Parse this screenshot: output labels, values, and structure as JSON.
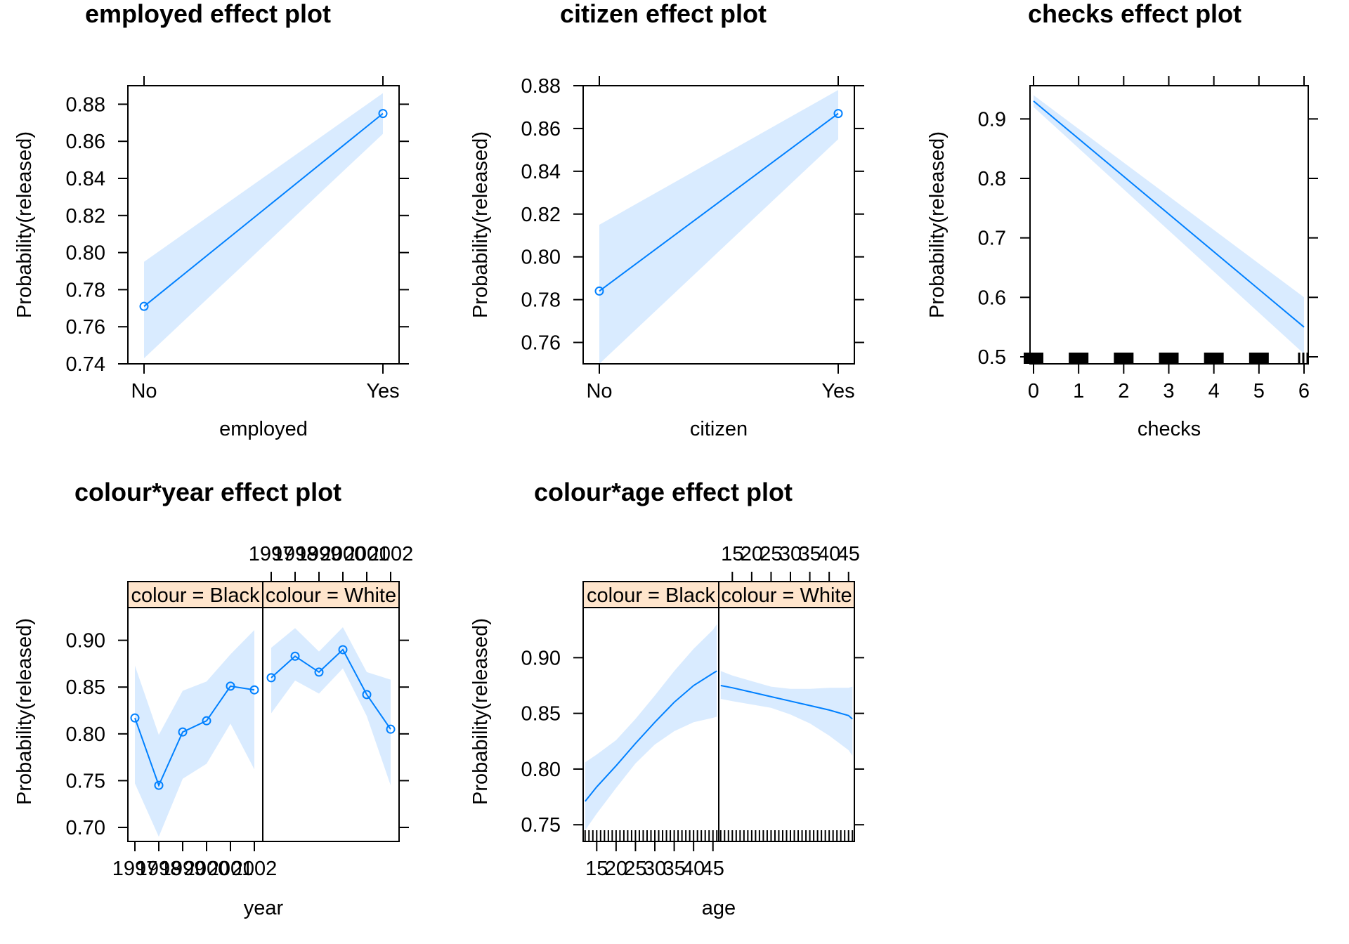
{
  "chart_data": [
    {
      "type": "line",
      "title": "employed effect plot",
      "xlabel": "employed",
      "ylabel": "Probability(released)",
      "categories": [
        "No",
        "Yes"
      ],
      "fit": [
        0.771,
        0.875
      ],
      "lower": [
        0.743,
        0.864
      ],
      "upper": [
        0.795,
        0.886
      ],
      "ylim": [
        0.74,
        0.89
      ],
      "yticks": [
        0.74,
        0.76,
        0.78,
        0.8,
        0.82,
        0.84,
        0.86,
        0.88
      ],
      "ytick_labels": [
        "0.74",
        "0.76",
        "0.78",
        "0.80",
        "0.82",
        "0.84",
        "0.86",
        "0.88"
      ],
      "series_color": "#0080ff",
      "band_color": "#d9ebff"
    },
    {
      "type": "line",
      "title": "citizen effect plot",
      "xlabel": "citizen",
      "ylabel": "Probability(released)",
      "categories": [
        "No",
        "Yes"
      ],
      "fit": [
        0.784,
        0.867
      ],
      "lower": [
        0.75,
        0.855
      ],
      "upper": [
        0.815,
        0.878
      ],
      "ylim": [
        0.75,
        0.88
      ],
      "yticks": [
        0.76,
        0.78,
        0.8,
        0.82,
        0.84,
        0.86,
        0.88
      ],
      "ytick_labels": [
        "0.76",
        "0.78",
        "0.80",
        "0.82",
        "0.84",
        "0.86",
        "0.88"
      ],
      "series_color": "#0080ff",
      "band_color": "#d9ebff"
    },
    {
      "type": "line",
      "title": "checks effect plot",
      "xlabel": "checks",
      "ylabel": "Probability(released)",
      "x": [
        0,
        6
      ],
      "fit": [
        0.93,
        0.55
      ],
      "lower": [
        0.92,
        0.505
      ],
      "upper": [
        0.94,
        0.6
      ],
      "xlim": [
        0,
        6
      ],
      "xticks": [
        0,
        1,
        2,
        3,
        4,
        5,
        6
      ],
      "ylim": [
        0.5,
        0.95
      ],
      "yticks": [
        0.5,
        0.6,
        0.7,
        0.8,
        0.9
      ],
      "ytick_labels": [
        "0.5",
        "0.6",
        "0.7",
        "0.8",
        "0.9"
      ],
      "rug": [
        0,
        1,
        2,
        3,
        4,
        5,
        6
      ],
      "series_color": "#0080ff",
      "band_color": "#d9ebff"
    },
    {
      "type": "line",
      "title": "colour*year effect plot",
      "xlabel": "year",
      "ylabel": "Probability(released)",
      "x": [
        1997,
        1998,
        1999,
        2000,
        2001,
        2002
      ],
      "xticks_labels": [
        "1997",
        "1998",
        "1999",
        "2000",
        "2001",
        "2002"
      ],
      "ylim": [
        0.685,
        0.935
      ],
      "yticks": [
        0.7,
        0.75,
        0.8,
        0.85,
        0.9
      ],
      "ytick_labels": [
        "0.70",
        "0.75",
        "0.80",
        "0.85",
        "0.90"
      ],
      "panels": [
        {
          "strip": "colour = Black",
          "fit": [
            0.817,
            0.745,
            0.802,
            0.814,
            0.851,
            0.847
          ],
          "lower": [
            0.747,
            0.69,
            0.752,
            0.768,
            0.811,
            0.762
          ],
          "upper": [
            0.873,
            0.799,
            0.846,
            0.856,
            0.885,
            0.911
          ]
        },
        {
          "strip": "colour = White",
          "fit": [
            0.86,
            0.883,
            0.866,
            0.89,
            0.842,
            0.805
          ],
          "lower": [
            0.822,
            0.857,
            0.843,
            0.87,
            0.819,
            0.745
          ],
          "upper": [
            0.892,
            0.913,
            0.888,
            0.914,
            0.866,
            0.858
          ]
        }
      ],
      "series_color": "#0080ff",
      "band_color": "#d9ebff",
      "strip_color": "#ffe5cc"
    },
    {
      "type": "line",
      "title": "colour*age effect plot",
      "xlabel": "age",
      "ylabel": "Probability(released)",
      "x": [
        12,
        15,
        20,
        25,
        30,
        35,
        40,
        45,
        46
      ],
      "xticks": [
        15,
        20,
        25,
        30,
        35,
        40,
        45
      ],
      "xticks_labels": [
        "15",
        "20",
        "25",
        "30",
        "35",
        "40",
        "45"
      ],
      "xlim": [
        11.5,
        46.5
      ],
      "ylim": [
        0.735,
        0.945
      ],
      "yticks": [
        0.75,
        0.8,
        0.85,
        0.9
      ],
      "ytick_labels": [
        "0.75",
        "0.80",
        "0.85",
        "0.90"
      ],
      "panels": [
        {
          "strip": "colour = Black",
          "fit": [
            0.771,
            0.784,
            0.803,
            0.823,
            0.842,
            0.86,
            0.875,
            0.886,
            0.888
          ],
          "lower": [
            0.745,
            0.76,
            0.783,
            0.805,
            0.822,
            0.834,
            0.842,
            0.846,
            0.847
          ],
          "upper": [
            0.806,
            0.813,
            0.826,
            0.845,
            0.866,
            0.888,
            0.908,
            0.925,
            0.93
          ]
        },
        {
          "strip": "colour = White",
          "fit": [
            0.875,
            0.873,
            0.869,
            0.865,
            0.861,
            0.857,
            0.853,
            0.848,
            0.845
          ],
          "lower": [
            0.863,
            0.861,
            0.858,
            0.855,
            0.849,
            0.841,
            0.83,
            0.817,
            0.812
          ],
          "upper": [
            0.888,
            0.884,
            0.879,
            0.874,
            0.872,
            0.872,
            0.873,
            0.873,
            0.874
          ]
        }
      ],
      "series_color": "#0080ff",
      "band_color": "#d9ebff",
      "strip_color": "#ffe5cc"
    }
  ]
}
